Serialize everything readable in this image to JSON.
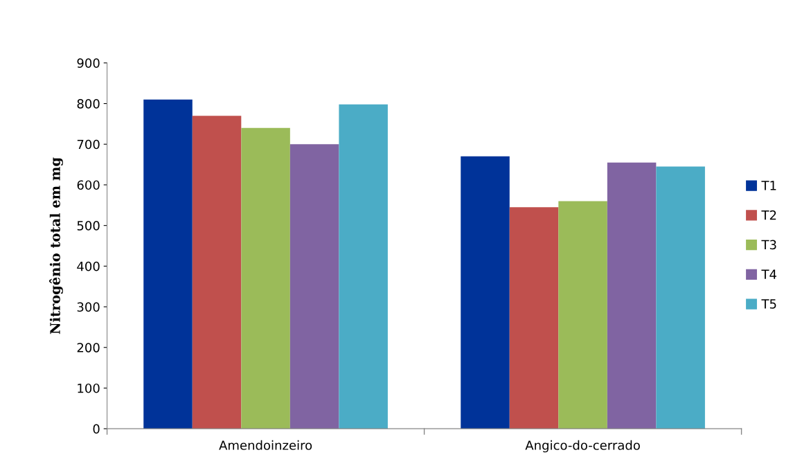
{
  "chart_data": {
    "type": "bar",
    "ylabel": "Nitrogênio total em mg",
    "categories": [
      "Amendoinzeiro",
      "Angico-do-cerrado"
    ],
    "series": [
      {
        "name": "T1",
        "color": "#003399",
        "values": [
          810,
          670
        ]
      },
      {
        "name": "T2",
        "color": "#c0504d",
        "values": [
          770,
          545
        ]
      },
      {
        "name": "T3",
        "color": "#9bbb59",
        "values": [
          740,
          560
        ]
      },
      {
        "name": "T4",
        "color": "#8064a2",
        "values": [
          700,
          655
        ]
      },
      {
        "name": "T5",
        "color": "#4bacc6",
        "values": [
          798,
          645
        ]
      }
    ],
    "ylim": [
      0,
      900
    ],
    "yticks": [
      0,
      100,
      200,
      300,
      400,
      500,
      600,
      700,
      800,
      900
    ],
    "grid": false,
    "legend": "right"
  }
}
